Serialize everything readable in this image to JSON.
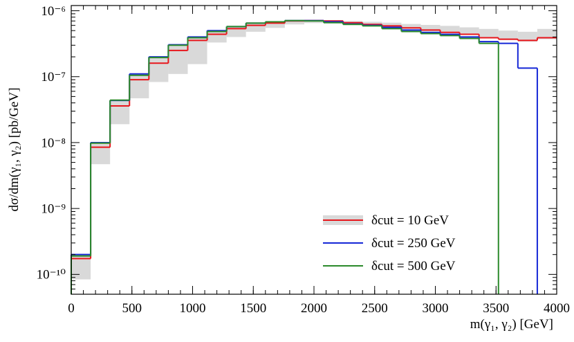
{
  "chart_data": {
    "type": "histogram",
    "x_label": "m(γ₁, γ₂) [GeV]",
    "y_label": "dσ/dm(γ₁, γ₂) [pb/GeV]",
    "log_y": true,
    "bins": [
      0,
      160,
      320,
      480,
      640,
      800,
      960,
      1120,
      1280,
      1440,
      1600,
      1760,
      1920,
      2080,
      2240,
      2400,
      2560,
      2720,
      2880,
      3040,
      3200,
      3360,
      3520,
      3680,
      3840,
      4000
    ],
    "xlim": [
      0,
      4000
    ],
    "xticks": [
      0,
      500,
      1000,
      1500,
      2000,
      2500,
      3000,
      3500,
      4000
    ],
    "ylim": [
      5e-11,
      1.2e-06
    ],
    "yticks": [
      {
        "value": 1e-10,
        "label": "10⁻¹⁰"
      },
      {
        "value": 1e-09,
        "label": "10⁻⁹"
      },
      {
        "value": 1e-08,
        "label": "10⁻⁸"
      },
      {
        "value": 1e-07,
        "label": "10⁻⁷"
      },
      {
        "value": 1e-06,
        "label": "10⁻⁶"
      }
    ],
    "band": {
      "color": "#d9d9d9",
      "lower": [
        8.4e-11,
        4.7e-09,
        1.9e-08,
        4.7e-08,
        8.3e-08,
        1.1e-07,
        1.55e-07,
        3.3e-07,
        4e-07,
        4.8e-07,
        5.5e-07,
        6.2e-07,
        6.5e-07,
        6.6e-07,
        6.4e-07,
        6e-07,
        5.7e-07,
        5.3e-07,
        4.9e-07,
        4.6e-07,
        4.3e-07,
        3.8e-07,
        3.6e-07,
        3.4e-07,
        3.7e-07
      ],
      "upper": [
        2e-10,
        9.6e-09,
        4.3e-08,
        1.1e-07,
        2e-07,
        2.9e-07,
        3.9e-07,
        5e-07,
        5.8e-07,
        6.5e-07,
        6.9e-07,
        7.2e-07,
        7.3e-07,
        7.2e-07,
        7e-07,
        6.8e-07,
        6.6e-07,
        6.3e-07,
        6.1e-07,
        5.9e-07,
        5.6e-07,
        5.3e-07,
        5e-07,
        4.8e-07,
        5.3e-07
      ]
    },
    "series": [
      {
        "name": "δcut = 10 GeV",
        "color": "#e8151b",
        "values": [
          1.74e-10,
          8.5e-09,
          3.6e-08,
          9e-08,
          1.6e-07,
          2.5e-07,
          3.55e-07,
          4.4e-07,
          5.35e-07,
          6e-07,
          6.5e-07,
          7e-07,
          7.1e-07,
          7e-07,
          6.6e-07,
          6.2e-07,
          5.9e-07,
          5.5e-07,
          5.1e-07,
          4.7e-07,
          4.4e-07,
          3.9e-07,
          3.7e-07,
          3.55e-07,
          3.9e-07
        ]
      },
      {
        "name": "δcut = 250 GeV",
        "color": "#1426d6",
        "values": [
          2e-10,
          1e-08,
          4.35e-08,
          1.1e-07,
          2e-07,
          3.05e-07,
          4e-07,
          5e-07,
          5.75e-07,
          6.5e-07,
          6.8e-07,
          7.1e-07,
          7.1e-07,
          6.8e-07,
          6.3e-07,
          6e-07,
          5.6e-07,
          5.1e-07,
          4.7e-07,
          4.4e-07,
          4e-07,
          3.4e-07,
          3.2e-07,
          1.35e-07,
          null
        ]
      },
      {
        "name": "δcut = 500 GeV",
        "color": "#2a8a2a",
        "values": [
          1.9e-10,
          9.8e-09,
          4.4e-08,
          1.05e-07,
          1.95e-07,
          3e-07,
          3.9e-07,
          4.85e-07,
          5.75e-07,
          6.5e-07,
          6.8e-07,
          7.1e-07,
          7e-07,
          6.6e-07,
          6.2e-07,
          5.9e-07,
          5.35e-07,
          4.85e-07,
          4.5e-07,
          4.2e-07,
          3.8e-07,
          3.2e-07,
          null,
          null,
          null
        ]
      }
    ],
    "legend": "lower right"
  }
}
